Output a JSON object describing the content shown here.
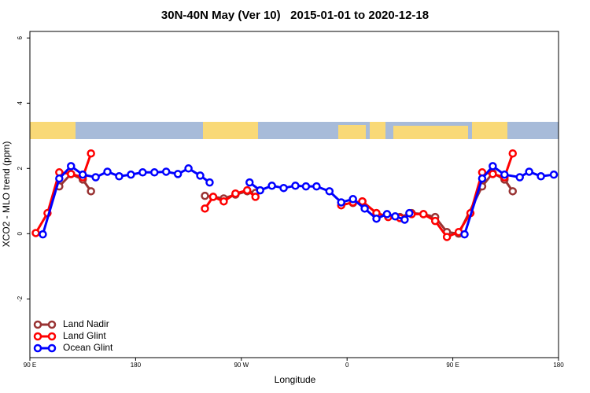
{
  "chart_data": {
    "type": "line",
    "title": "30N-40N May (Ver 10)   2015-01-01 to 2020-12-18",
    "x_label": "Longitude",
    "y_label": "XCO2 - MLO trend (ppm)",
    "xlim": [
      90,
      540
    ],
    "xticks": [
      {
        "value": 90,
        "label": "90 E"
      },
      180,
      {
        "value": 270,
        "label": "90 W"
      },
      {
        "value": 360,
        "label": "0"
      },
      {
        "value": 450,
        "label": "90 E"
      },
      {
        "value": 540,
        "label": "180"
      }
    ],
    "ylim": [
      -3.8,
      6.2
    ],
    "yticks": [
      -2,
      0,
      2,
      4,
      6
    ],
    "legend": "bottom-left",
    "series": [
      {
        "name": "Land Nadir",
        "color": "#993333",
        "x": [
          115,
          125,
          135,
          142,
          null,
          239,
          246,
          255,
          265,
          275,
          282,
          null,
          365,
          373,
          385,
          395,
          405,
          415,
          425,
          435,
          445,
          455,
          475,
          484,
          494,
          501
        ],
        "values": [
          1.45,
          1.83,
          1.66,
          1.3,
          null,
          1.16,
          1.13,
          1.08,
          1.2,
          1.3,
          1.25,
          null,
          0.94,
          0.99,
          0.63,
          0.53,
          0.51,
          0.63,
          0.6,
          0.51,
          0.05,
          0,
          1.45,
          1.86,
          1.66,
          1.3
        ]
      },
      {
        "name": "Land Glint",
        "color": "#ff0000",
        "x": [
          95,
          105,
          115,
          125,
          135,
          142,
          null,
          239,
          246,
          255,
          265,
          275,
          282,
          null,
          355,
          365,
          373,
          385,
          395,
          405,
          415,
          425,
          435,
          445,
          455,
          465,
          475,
          484,
          494,
          501
        ],
        "values": [
          0.02,
          0.63,
          1.88,
          1.83,
          1.73,
          2.46,
          null,
          0.77,
          1.13,
          0.99,
          1.23,
          1.33,
          1.13,
          null,
          0.87,
          0.96,
          0.99,
          0.63,
          0.51,
          0.48,
          0.6,
          0.6,
          0.39,
          -0.1,
          0.05,
          0.63,
          1.88,
          1.83,
          1.73,
          2.46
        ]
      },
      {
        "name": "Ocean Glint",
        "color": "#0000ff",
        "x": [
          101,
          115,
          125,
          135,
          146,
          156,
          166,
          176,
          186,
          196,
          206,
          216,
          225,
          235,
          243,
          null,
          277,
          286,
          296,
          306,
          316,
          325,
          334,
          345,
          355,
          365,
          375,
          385,
          394,
          401,
          409,
          413,
          null,
          460,
          475,
          484,
          494,
          507,
          515,
          525,
          536
        ],
        "values": [
          -0.02,
          1.69,
          2.07,
          1.81,
          1.73,
          1.9,
          1.76,
          1.81,
          1.88,
          1.88,
          1.9,
          1.83,
          2.0,
          1.78,
          1.57,
          null,
          1.57,
          1.33,
          1.47,
          1.4,
          1.47,
          1.45,
          1.45,
          1.3,
          0.96,
          1.06,
          0.77,
          0.46,
          0.6,
          0.53,
          0.43,
          0.63,
          null,
          -0.02,
          1.69,
          2.07,
          1.81,
          1.73,
          1.9,
          1.76,
          1.81
        ]
      }
    ]
  }
}
